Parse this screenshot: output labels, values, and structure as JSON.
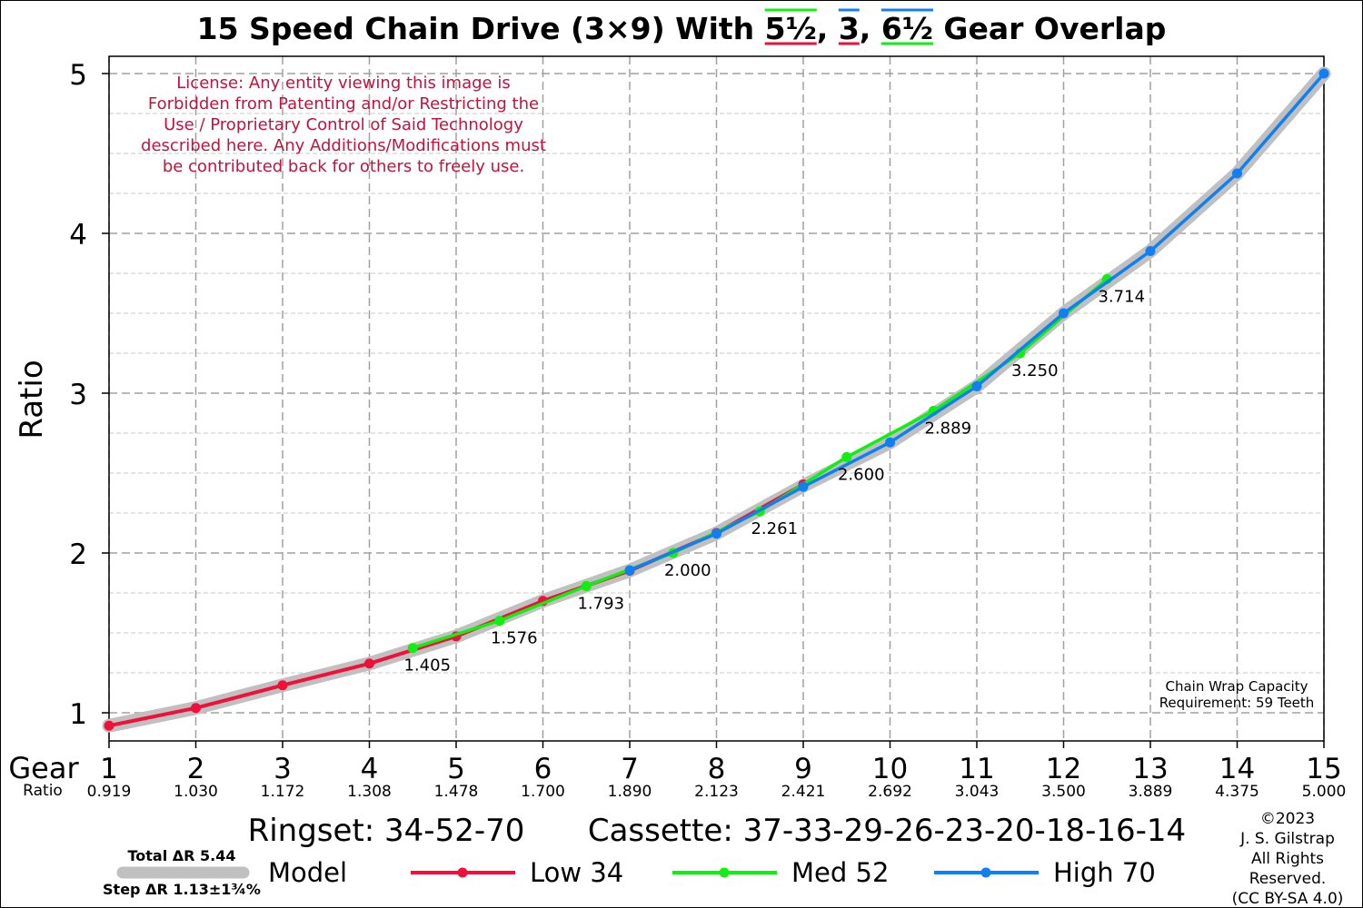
{
  "chart_data": {
    "type": "line",
    "title": {
      "prefix": "15 Speed Chain Drive (3×9) With ",
      "o1": "5½",
      "sep1": ", ",
      "o2": "3",
      "sep2": ", ",
      "o3": "6½",
      "suffix": " Gear Overlap"
    },
    "ylabel": "Ratio",
    "xlabel": "Gear",
    "ratio_row_label": "Ratio",
    "xlim": [
      1,
      15
    ],
    "ylim": [
      0.84,
      5.1
    ],
    "yticks": [
      "1",
      "2",
      "3",
      "4",
      "5"
    ],
    "gears": [
      1,
      2,
      3,
      4,
      5,
      6,
      7,
      8,
      9,
      10,
      11,
      12,
      13,
      14,
      15
    ],
    "gear_ratios": [
      "0.919",
      "1.030",
      "1.172",
      "1.308",
      "1.478",
      "1.700",
      "1.890",
      "2.123",
      "2.421",
      "2.692",
      "3.043",
      "3.500",
      "3.889",
      "4.375",
      "5.000"
    ],
    "model": {
      "name": "Model",
      "color": "#c0c0c0",
      "points": [
        [
          1,
          0.919
        ],
        [
          2,
          1.03
        ],
        [
          3,
          1.172
        ],
        [
          4,
          1.308
        ],
        [
          5,
          1.478
        ],
        [
          6,
          1.7
        ],
        [
          7,
          1.89
        ],
        [
          8,
          2.123
        ],
        [
          9,
          2.421
        ],
        [
          10,
          2.692
        ],
        [
          11,
          3.043
        ],
        [
          12,
          3.5
        ],
        [
          13,
          3.889
        ],
        [
          14,
          4.375
        ],
        [
          15,
          5.0
        ]
      ]
    },
    "series": [
      {
        "name": "Low 34",
        "color": "#f0103a",
        "points": [
          [
            1,
            0.919
          ],
          [
            2,
            1.03
          ],
          [
            3,
            1.172
          ],
          [
            4,
            1.308
          ],
          [
            5,
            1.478
          ],
          [
            6,
            1.7
          ],
          [
            7,
            1.889
          ],
          [
            8,
            2.125
          ],
          [
            9,
            2.429
          ]
        ]
      },
      {
        "name": "Med 52",
        "color": "#11ee11",
        "points": [
          [
            4.5,
            1.405
          ],
          [
            5.5,
            1.576
          ],
          [
            6.5,
            1.793
          ],
          [
            7.5,
            2.0
          ],
          [
            8.5,
            2.261
          ],
          [
            9.5,
            2.6
          ],
          [
            10.5,
            2.889
          ],
          [
            11.5,
            3.25
          ],
          [
            12.5,
            3.714
          ]
        ]
      },
      {
        "name": "High 70",
        "color": "#1080f0",
        "points": [
          [
            7,
            1.892
          ],
          [
            8,
            2.121
          ],
          [
            9,
            2.414
          ],
          [
            10,
            2.692
          ],
          [
            11,
            3.043
          ],
          [
            12,
            3.5
          ],
          [
            13,
            3.889
          ],
          [
            14,
            4.375
          ],
          [
            15,
            5.0
          ]
        ]
      }
    ],
    "annotations": [
      {
        "x": 4.5,
        "y": 1.405,
        "text": "1.405"
      },
      {
        "x": 5.5,
        "y": 1.576,
        "text": "1.576"
      },
      {
        "x": 6.5,
        "y": 1.793,
        "text": "1.793"
      },
      {
        "x": 7.5,
        "y": 2.0,
        "text": "2.000"
      },
      {
        "x": 8.5,
        "y": 2.261,
        "text": "2.261"
      },
      {
        "x": 9.5,
        "y": 2.6,
        "text": "2.600"
      },
      {
        "x": 10.5,
        "y": 2.889,
        "text": "2.889"
      },
      {
        "x": 11.5,
        "y": 3.25,
        "text": "3.250"
      },
      {
        "x": 12.5,
        "y": 3.714,
        "text": "3.714"
      }
    ],
    "license": [
      "License: Any entity viewing this image is",
      "Forbidden from Patenting and/or Restricting the",
      "Use / Proprietary Control of Said Technology",
      "described here. Any Additions/Modifications must",
      "be contributed back for others to freely use."
    ],
    "chain_wrap": [
      "Chain Wrap Capacity",
      "Requirement: 59 Teeth"
    ],
    "ringset": "Ringset: 34-52-70",
    "cassette": "Cassette: 37-33-29-26-23-20-18-16-14",
    "total_dr": "Total ΔR 5.44",
    "step_dr": "Step ΔR 1.13±1¾%",
    "copyright": [
      "©2023",
      "J. S. Gilstrap",
      "All Rights",
      "Reserved.",
      "(CC BY-SA 4.0)"
    ],
    "colors": {
      "license": "#c0143c",
      "grid": "#a0a0a0",
      "axis": "#000000"
    },
    "grid": true,
    "legend": "bottom"
  }
}
